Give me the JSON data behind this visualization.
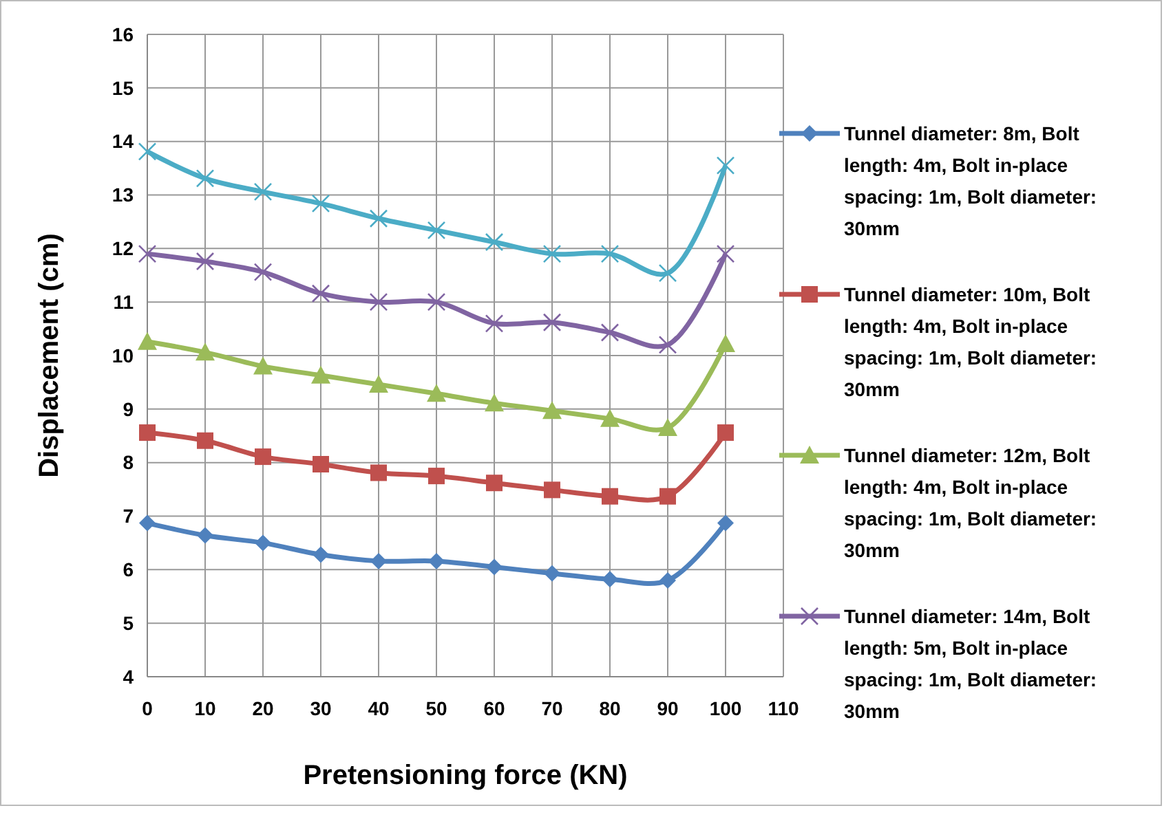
{
  "chart_data": {
    "type": "line",
    "xlabel": "Pretensioning force (KN)",
    "ylabel": "Displacement (cm)",
    "x": [
      0,
      10,
      20,
      30,
      40,
      50,
      60,
      70,
      80,
      90,
      100
    ],
    "xlim": [
      0,
      110
    ],
    "xticks": [
      0,
      10,
      20,
      30,
      40,
      50,
      60,
      70,
      80,
      90,
      100,
      110
    ],
    "ylim": [
      4,
      16
    ],
    "yticks": [
      4,
      5,
      6,
      7,
      8,
      9,
      10,
      11,
      12,
      13,
      14,
      15,
      16
    ],
    "grid": true,
    "legend": "right",
    "series": [
      {
        "name": "Tunnel diameter: 8m, Bolt length: 4m, Bolt in-place spacing: 1m, Bolt diameter: 30mm",
        "color": "#4f81bd",
        "marker": "diamond",
        "values": [
          6.87,
          6.64,
          6.5,
          6.28,
          6.16,
          6.16,
          6.05,
          5.93,
          5.82,
          5.8,
          6.87
        ]
      },
      {
        "name": "Tunnel diameter: 10m, Bolt length: 4m, Bolt in-place spacing: 1m, Bolt diameter: 30mm",
        "color": "#c0504d",
        "marker": "square",
        "values": [
          8.56,
          8.41,
          8.11,
          7.97,
          7.81,
          7.75,
          7.62,
          7.49,
          7.37,
          7.37,
          8.56
        ]
      },
      {
        "name": "Tunnel diameter: 12m, Bolt length: 4m, Bolt in-place spacing: 1m, Bolt diameter: 30mm",
        "color": "#9bbb59",
        "marker": "triangle",
        "values": [
          10.26,
          10.06,
          9.8,
          9.63,
          9.46,
          9.29,
          9.11,
          8.97,
          8.82,
          8.65,
          10.22
        ]
      },
      {
        "name": "Tunnel diameter: 14m, Bolt length: 5m, Bolt in-place spacing: 1m, Bolt diameter: 30mm",
        "color": "#8064a2",
        "marker": "cross",
        "values": [
          11.9,
          11.76,
          11.56,
          11.16,
          11.0,
          11.0,
          10.6,
          10.62,
          10.43,
          10.2,
          11.9
        ]
      },
      {
        "color": "#4bacc6",
        "marker": "cross",
        "values": [
          13.81,
          13.31,
          13.06,
          12.84,
          12.56,
          12.34,
          12.12,
          11.9,
          11.9,
          11.54,
          13.55
        ]
      }
    ]
  }
}
